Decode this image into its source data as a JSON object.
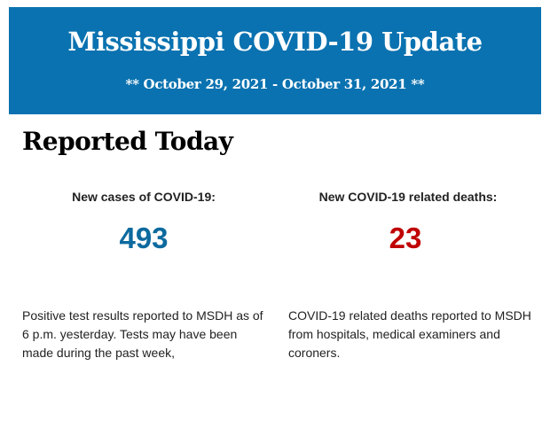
{
  "header": {
    "title": "Mississippi COVID-19 Update",
    "dates": "** October 29, 2021 - October 31, 2021 **",
    "color": "#0a72b0"
  },
  "section_title": "Reported Today",
  "cases": {
    "label": "New cases of COVID-19:",
    "value": "493",
    "color": "#0d6a9e",
    "description": "Positive test results reported to MSDH as of 6 p.m. yesterday. Tests may have been made during the past week,"
  },
  "deaths": {
    "label": "New COVID-19 related deaths:",
    "value": "23",
    "color": "#c00000",
    "description": "COVID-19 related deaths reported to MSDH from hospitals, medical examiners and coroners."
  }
}
